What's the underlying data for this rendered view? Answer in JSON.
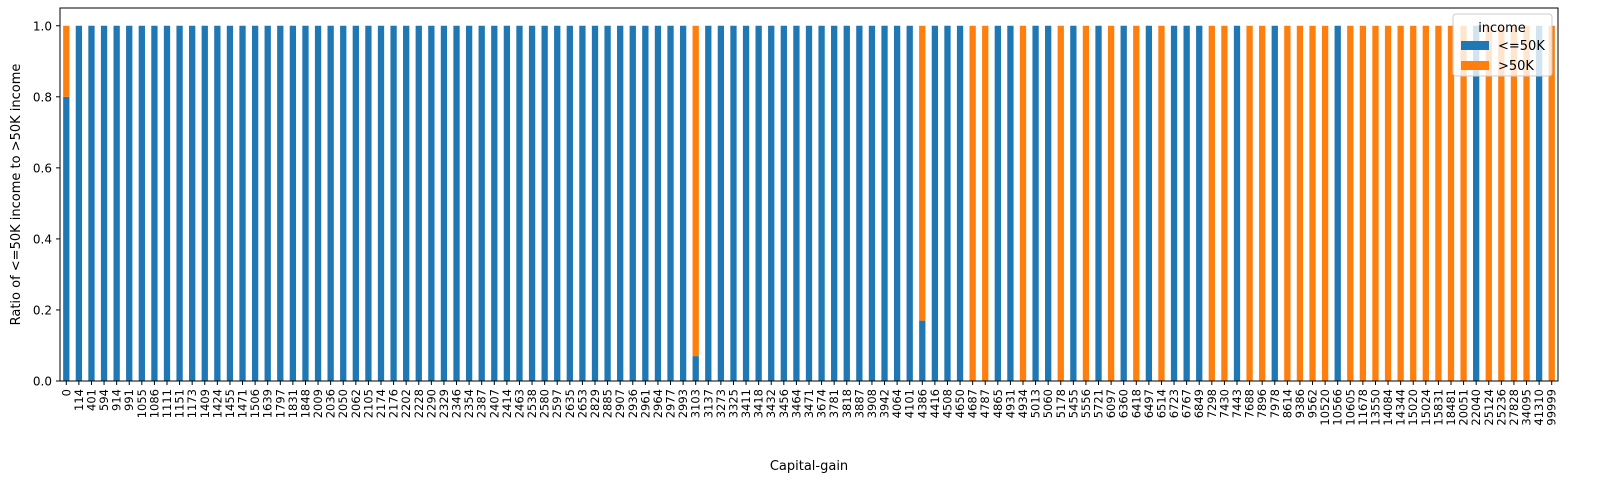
{
  "chart_data": {
    "type": "bar",
    "stacked": true,
    "title": "",
    "xlabel": "Capital-gain",
    "ylabel": "Ratio of <=50K income to >50K income",
    "ylim": [
      0,
      1.05
    ],
    "yticks": [
      "0.0",
      "0.2",
      "0.4",
      "0.6",
      "0.8",
      "1.0"
    ],
    "grid": false,
    "legend": {
      "title": "income",
      "placement": "top-right"
    },
    "categories": [
      "0",
      "114",
      "401",
      "594",
      "914",
      "991",
      "1055",
      "1086",
      "1111",
      "1151",
      "1173",
      "1409",
      "1424",
      "1455",
      "1471",
      "1506",
      "1639",
      "1797",
      "1831",
      "1848",
      "2009",
      "2036",
      "2050",
      "2062",
      "2105",
      "2174",
      "2176",
      "2202",
      "2228",
      "2290",
      "2329",
      "2346",
      "2354",
      "2387",
      "2407",
      "2414",
      "2463",
      "2538",
      "2580",
      "2597",
      "2635",
      "2653",
      "2829",
      "2885",
      "2907",
      "2936",
      "2961",
      "2964",
      "2977",
      "2993",
      "3103",
      "3137",
      "3273",
      "3325",
      "3411",
      "3418",
      "3432",
      "3456",
      "3464",
      "3471",
      "3674",
      "3781",
      "3818",
      "3887",
      "3908",
      "3942",
      "4064",
      "4101",
      "4386",
      "4416",
      "4508",
      "4650",
      "4687",
      "4787",
      "4865",
      "4931",
      "4934",
      "5013",
      "5060",
      "5178",
      "5455",
      "5556",
      "5721",
      "6097",
      "6360",
      "6418",
      "6497",
      "6514",
      "6723",
      "6767",
      "6849",
      "7298",
      "7430",
      "7443",
      "7688",
      "7896",
      "7978",
      "8614",
      "9386",
      "9562",
      "10520",
      "10566",
      "10605",
      "11678",
      "13550",
      "14084",
      "14344",
      "15020",
      "15024",
      "15831",
      "18481",
      "20051",
      "22040",
      "25124",
      "25236",
      "27828",
      "34095",
      "41310",
      "99999"
    ],
    "series": [
      {
        "name": "<=50K",
        "color": "#1f77b4",
        "values": [
          0.8,
          1,
          1,
          1,
          1,
          1,
          1,
          1,
          1,
          1,
          1,
          1,
          1,
          1,
          1,
          1,
          1,
          1,
          1,
          1,
          1,
          1,
          1,
          1,
          1,
          1,
          1,
          1,
          1,
          1,
          1,
          1,
          1,
          1,
          1,
          1,
          1,
          1,
          1,
          1,
          1,
          1,
          1,
          1,
          1,
          1,
          1,
          1,
          1,
          1,
          0.07,
          1,
          1,
          1,
          1,
          1,
          1,
          1,
          1,
          1,
          1,
          1,
          1,
          1,
          1,
          1,
          1,
          1,
          0.17,
          1,
          1,
          1,
          0,
          0,
          1,
          1,
          0,
          1,
          1,
          0,
          1,
          0,
          1,
          0,
          1,
          0,
          1,
          0,
          1,
          1,
          1,
          0,
          0,
          1,
          0,
          0,
          1,
          0,
          0,
          0,
          0,
          1,
          0,
          0,
          0,
          0,
          0,
          0,
          0,
          0,
          0,
          0,
          1,
          0,
          0,
          0,
          0,
          1,
          0
        ]
      },
      {
        "name": ">50K",
        "color": "#ff7f0e",
        "values": [
          0.2,
          0,
          0,
          0,
          0,
          0,
          0,
          0,
          0,
          0,
          0,
          0,
          0,
          0,
          0,
          0,
          0,
          0,
          0,
          0,
          0,
          0,
          0,
          0,
          0,
          0,
          0,
          0,
          0,
          0,
          0,
          0,
          0,
          0,
          0,
          0,
          0,
          0,
          0,
          0,
          0,
          0,
          0,
          0,
          0,
          0,
          0,
          0,
          0,
          0,
          0.93,
          0,
          0,
          0,
          0,
          0,
          0,
          0,
          0,
          0,
          0,
          0,
          0,
          0,
          0,
          0,
          0,
          0,
          0.83,
          0,
          0,
          0,
          1,
          1,
          0,
          0,
          1,
          0,
          0,
          1,
          0,
          1,
          0,
          1,
          0,
          1,
          0,
          1,
          0,
          0,
          0,
          1,
          1,
          0,
          1,
          1,
          0,
          1,
          1,
          1,
          1,
          0,
          1,
          1,
          1,
          1,
          1,
          1,
          1,
          1,
          1,
          1,
          0,
          1,
          1,
          1,
          1,
          0,
          1
        ]
      }
    ]
  }
}
